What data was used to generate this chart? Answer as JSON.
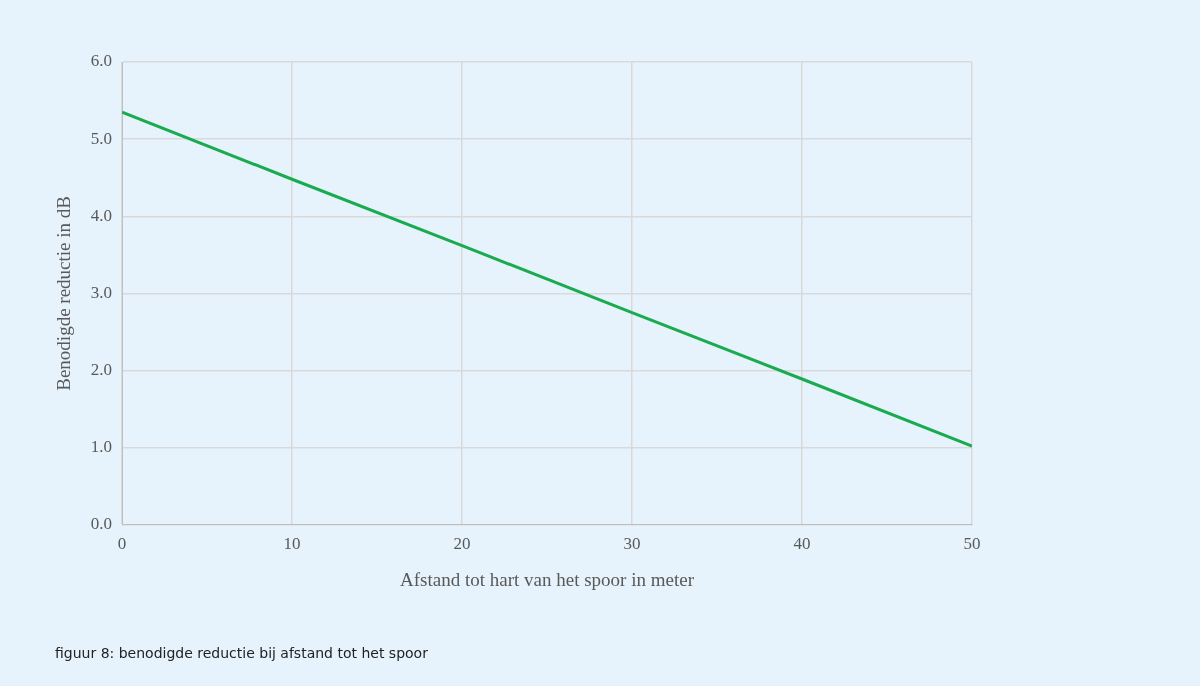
{
  "chart_data": {
    "type": "line",
    "xlabel": "Afstand tot hart van het spoor in meter",
    "ylabel": "Benodigde reductie in dB",
    "x": [
      0,
      10,
      20,
      30,
      40,
      50
    ],
    "series": [
      {
        "color": "#1aab4f",
        "values": [
          5.35,
          4.48,
          3.62,
          2.75,
          1.89,
          1.02
        ]
      }
    ],
    "xlim": [
      0,
      50
    ],
    "xticks": [
      0,
      10,
      20,
      30,
      40,
      50
    ],
    "ylim": [
      0,
      6
    ],
    "yticks": [
      {
        "value": 0,
        "label": "0.0"
      },
      {
        "value": 1,
        "label": "1.0"
      },
      {
        "value": 2,
        "label": "2.0"
      },
      {
        "value": 3,
        "label": "3.0"
      },
      {
        "value": 4,
        "label": "4.0"
      },
      {
        "value": 5,
        "label": "5.0"
      },
      {
        "value": 6,
        "label": "6.0"
      }
    ],
    "grid": true,
    "marker": "none",
    "line_style": "solid",
    "legend": false,
    "annotations": [
      "figuur 8: benodigde reductie bij afstand tot het spoor"
    ]
  }
}
